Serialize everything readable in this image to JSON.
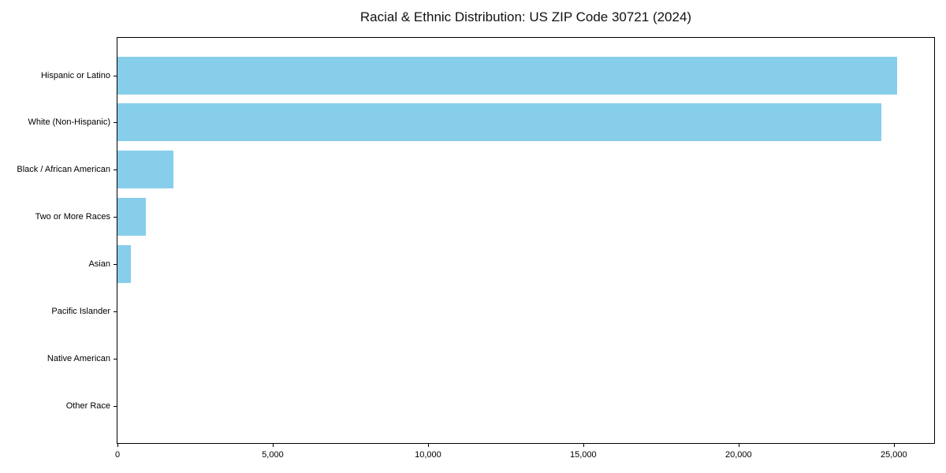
{
  "chart_data": {
    "type": "bar",
    "orientation": "horizontal",
    "title": "Racial & Ethnic Distribution: US ZIP Code 30721 (2024)",
    "categories": [
      "Hispanic or Latino",
      "White (Non-Hispanic)",
      "Black / African American",
      "Two or More Races",
      "Asian",
      "Pacific Islander",
      "Native American",
      "Other Race"
    ],
    "values": [
      25100,
      24600,
      1800,
      920,
      430,
      0,
      0,
      0
    ],
    "xlabel": "",
    "ylabel": "",
    "xlim": [
      0,
      26300
    ],
    "x_ticks": [
      0,
      5000,
      10000,
      15000,
      20000,
      25000
    ],
    "x_tick_labels": [
      "0",
      "5,000",
      "10,000",
      "15,000",
      "20,000",
      "25,000"
    ],
    "grid": false,
    "legend_position": "none",
    "bar_color": "#87CEEB",
    "axis_color": "#000000",
    "background_color": "#ffffff",
    "text_color": "#000000"
  }
}
